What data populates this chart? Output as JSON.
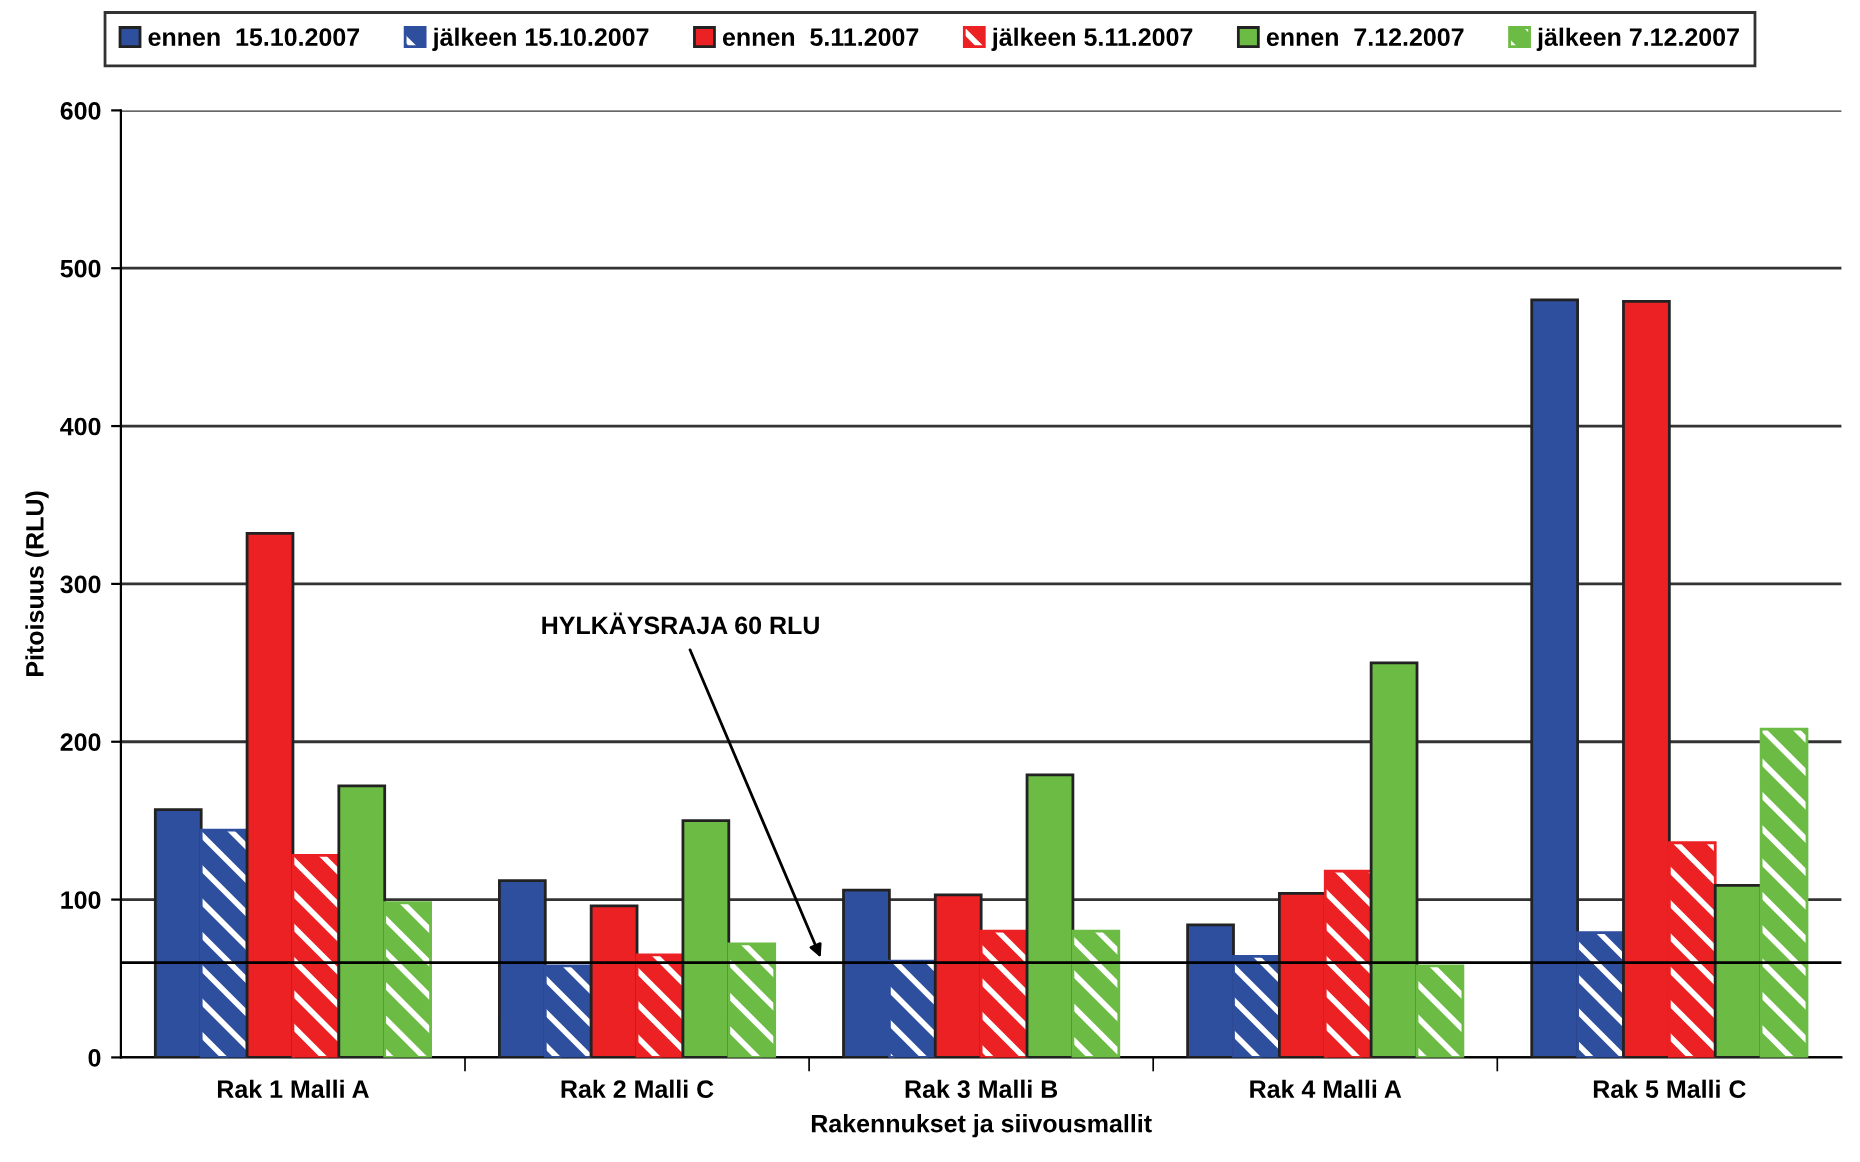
{
  "chart_data": {
    "type": "bar",
    "xlabel": "Rakennukset ja siivousmallit",
    "ylabel": "Pitoisuus (RLU)",
    "categories": [
      "Rak 1 Malli A",
      "Rak 2 Malli C",
      "Rak 3 Malli B",
      "Rak 4 Malli A",
      "Rak 5 Malli C"
    ],
    "series": [
      {
        "name": "ennen  15.10.2007",
        "color": "#2e4e9e",
        "values": [
          157,
          112,
          106,
          84,
          480
        ]
      },
      {
        "name": "jälkeen 15.10.2007",
        "color": "#2e4e9e",
        "values": [
          144,
          58,
          61,
          64,
          79
        ]
      },
      {
        "name": "ennen  5.11.2007",
        "color": "#ec2124",
        "values": [
          332,
          96,
          103,
          104,
          479
        ]
      },
      {
        "name": "jälkeen 5.11.2007",
        "color": "#ec2124",
        "values": [
          128,
          65,
          80,
          118,
          136
        ]
      },
      {
        "name": "ennen  7.12.2007",
        "color": "#6cbb45",
        "values": [
          172,
          150,
          179,
          250,
          109
        ]
      },
      {
        "name": "jälkeen 7.12.2007",
        "color": "#6cbb45",
        "values": [
          98,
          72,
          80,
          58,
          208
        ]
      }
    ],
    "ylim": [
      0,
      600
    ],
    "yticks": [
      0,
      100,
      200,
      300,
      400,
      500,
      600
    ],
    "grid": "y",
    "legend": "top",
    "ref_lines": [
      {
        "axis": "y",
        "value": 60,
        "label": "HYLKÄYSRAJA 60 RLU",
        "color": "#000000"
      }
    ]
  }
}
